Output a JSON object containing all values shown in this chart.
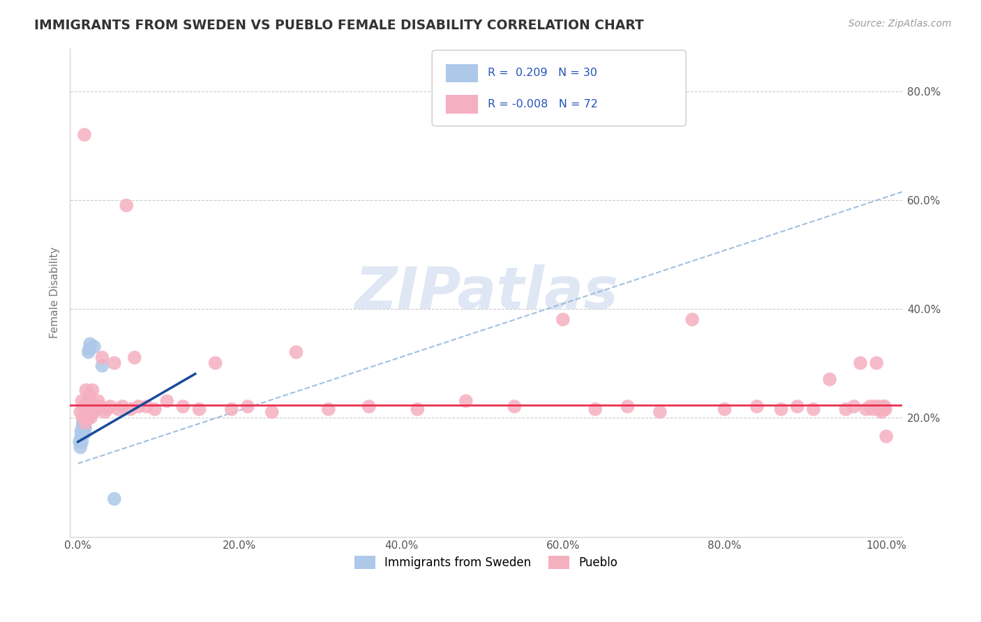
{
  "title": "IMMIGRANTS FROM SWEDEN VS PUEBLO FEMALE DISABILITY CORRELATION CHART",
  "source": "Source: ZipAtlas.com",
  "ylabel": "Female Disability",
  "watermark": "ZIPatlas",
  "legend_blue_r": "0.209",
  "legend_blue_n": "30",
  "legend_pink_r": "-0.008",
  "legend_pink_n": "72",
  "legend_label_blue": "Immigrants from Sweden",
  "legend_label_pink": "Pueblo",
  "xlim": [
    -0.01,
    1.02
  ],
  "ylim": [
    -0.02,
    0.88
  ],
  "xtick_labels": [
    "0.0%",
    "20.0%",
    "40.0%",
    "60.0%",
    "80.0%",
    "100.0%"
  ],
  "xtick_values": [
    0.0,
    0.2,
    0.4,
    0.6,
    0.8,
    1.0
  ],
  "ytick_labels": [
    "20.0%",
    "40.0%",
    "60.0%",
    "80.0%"
  ],
  "ytick_values": [
    0.2,
    0.4,
    0.6,
    0.8
  ],
  "blue_color": "#adc8e8",
  "pink_color": "#f5b0c0",
  "blue_line_color": "#1a4a9a",
  "pink_line_color": "#e83050",
  "dash_line_color": "#8ab0d8",
  "grid_color": "#cccccc",
  "background_color": "#ffffff",
  "blue_points_x": [
    0.002,
    0.003,
    0.004,
    0.004,
    0.005,
    0.005,
    0.006,
    0.006,
    0.007,
    0.007,
    0.007,
    0.008,
    0.008,
    0.008,
    0.009,
    0.009,
    0.009,
    0.01,
    0.01,
    0.01,
    0.011,
    0.011,
    0.012,
    0.012,
    0.013,
    0.014,
    0.015,
    0.02,
    0.03,
    0.045
  ],
  "blue_points_y": [
    0.155,
    0.145,
    0.165,
    0.175,
    0.17,
    0.155,
    0.185,
    0.19,
    0.18,
    0.175,
    0.19,
    0.185,
    0.195,
    0.17,
    0.2,
    0.195,
    0.18,
    0.215,
    0.205,
    0.195,
    0.225,
    0.215,
    0.22,
    0.21,
    0.32,
    0.325,
    0.335,
    0.33,
    0.295,
    0.05
  ],
  "pink_points_x": [
    0.003,
    0.005,
    0.006,
    0.007,
    0.008,
    0.009,
    0.01,
    0.011,
    0.012,
    0.013,
    0.014,
    0.015,
    0.016,
    0.017,
    0.018,
    0.02,
    0.022,
    0.025,
    0.028,
    0.03,
    0.033,
    0.036,
    0.04,
    0.045,
    0.05,
    0.055,
    0.06,
    0.065,
    0.07,
    0.075,
    0.085,
    0.095,
    0.11,
    0.13,
    0.15,
    0.17,
    0.19,
    0.21,
    0.24,
    0.27,
    0.31,
    0.36,
    0.42,
    0.48,
    0.54,
    0.6,
    0.64,
    0.68,
    0.72,
    0.76,
    0.8,
    0.84,
    0.87,
    0.89,
    0.91,
    0.93,
    0.95,
    0.96,
    0.968,
    0.975,
    0.98,
    0.983,
    0.986,
    0.988,
    0.99,
    0.992,
    0.994,
    0.996,
    0.997,
    0.998,
    0.999,
    1.0
  ],
  "pink_points_y": [
    0.21,
    0.23,
    0.2,
    0.22,
    0.72,
    0.19,
    0.25,
    0.22,
    0.21,
    0.2,
    0.24,
    0.23,
    0.2,
    0.22,
    0.25,
    0.21,
    0.215,
    0.23,
    0.22,
    0.31,
    0.21,
    0.215,
    0.22,
    0.3,
    0.215,
    0.22,
    0.59,
    0.215,
    0.31,
    0.22,
    0.22,
    0.215,
    0.23,
    0.22,
    0.215,
    0.3,
    0.215,
    0.22,
    0.21,
    0.32,
    0.215,
    0.22,
    0.215,
    0.23,
    0.22,
    0.38,
    0.215,
    0.22,
    0.21,
    0.38,
    0.215,
    0.22,
    0.215,
    0.22,
    0.215,
    0.27,
    0.215,
    0.22,
    0.3,
    0.215,
    0.22,
    0.215,
    0.22,
    0.3,
    0.22,
    0.215,
    0.21,
    0.22,
    0.215,
    0.22,
    0.215,
    0.165
  ],
  "blue_trend_start_x": 0.0,
  "blue_trend_end_x": 0.145,
  "blue_trend_start_y": 0.155,
  "blue_trend_end_y": 0.28,
  "dash_trend_start_x": 0.0,
  "dash_trend_end_x": 1.02,
  "dash_trend_start_y": 0.115,
  "dash_trend_end_y": 0.615,
  "pink_trend_y": 0.222
}
